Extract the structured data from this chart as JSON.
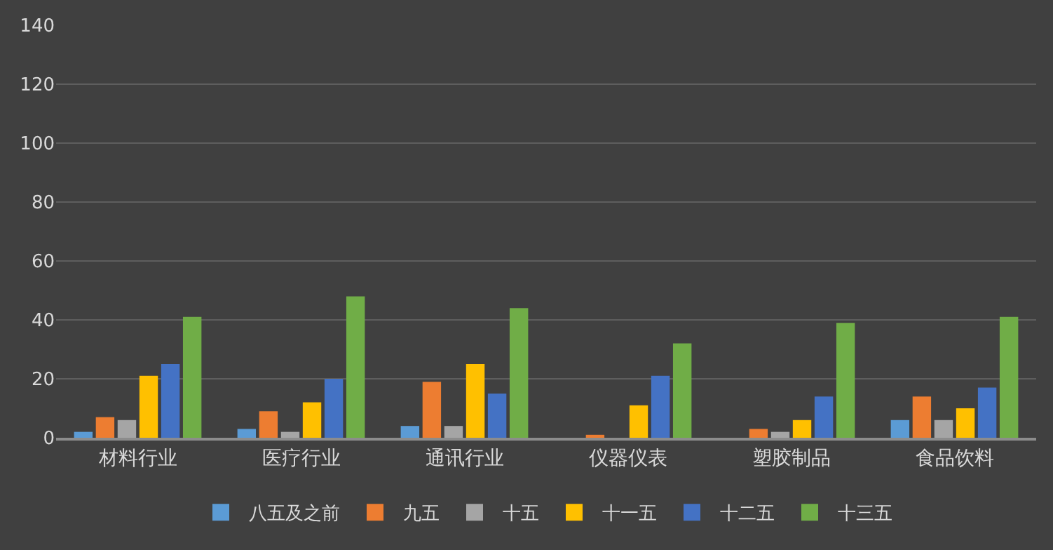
{
  "chart_data": {
    "type": "bar",
    "categories": [
      "材料行业",
      "医疗行业",
      "通讯行业",
      "仪器仪表",
      "塑胶制品",
      "食品饮料"
    ],
    "series": [
      {
        "name": "八五及之前",
        "color": "#5b9bd5",
        "values": [
          2,
          3,
          4,
          0,
          0,
          6
        ]
      },
      {
        "name": "九五",
        "color": "#ed7d31",
        "values": [
          7,
          9,
          19,
          1,
          3,
          14
        ]
      },
      {
        "name": "十五",
        "color": "#a5a5a5",
        "values": [
          6,
          2,
          4,
          0,
          2,
          6
        ]
      },
      {
        "name": "十一五",
        "color": "#ffc000",
        "values": [
          21,
          12,
          25,
          11,
          6,
          10
        ]
      },
      {
        "name": "十二五",
        "color": "#4472c4",
        "values": [
          25,
          20,
          15,
          21,
          14,
          17
        ]
      },
      {
        "name": "十三五",
        "color": "#70ad47",
        "values": [
          41,
          48,
          44,
          32,
          39,
          41
        ]
      }
    ],
    "ylim": [
      0,
      140
    ],
    "yticks": [
      0,
      20,
      40,
      60,
      80,
      100,
      120,
      140
    ],
    "grid": "y",
    "legend": "bottom"
  }
}
